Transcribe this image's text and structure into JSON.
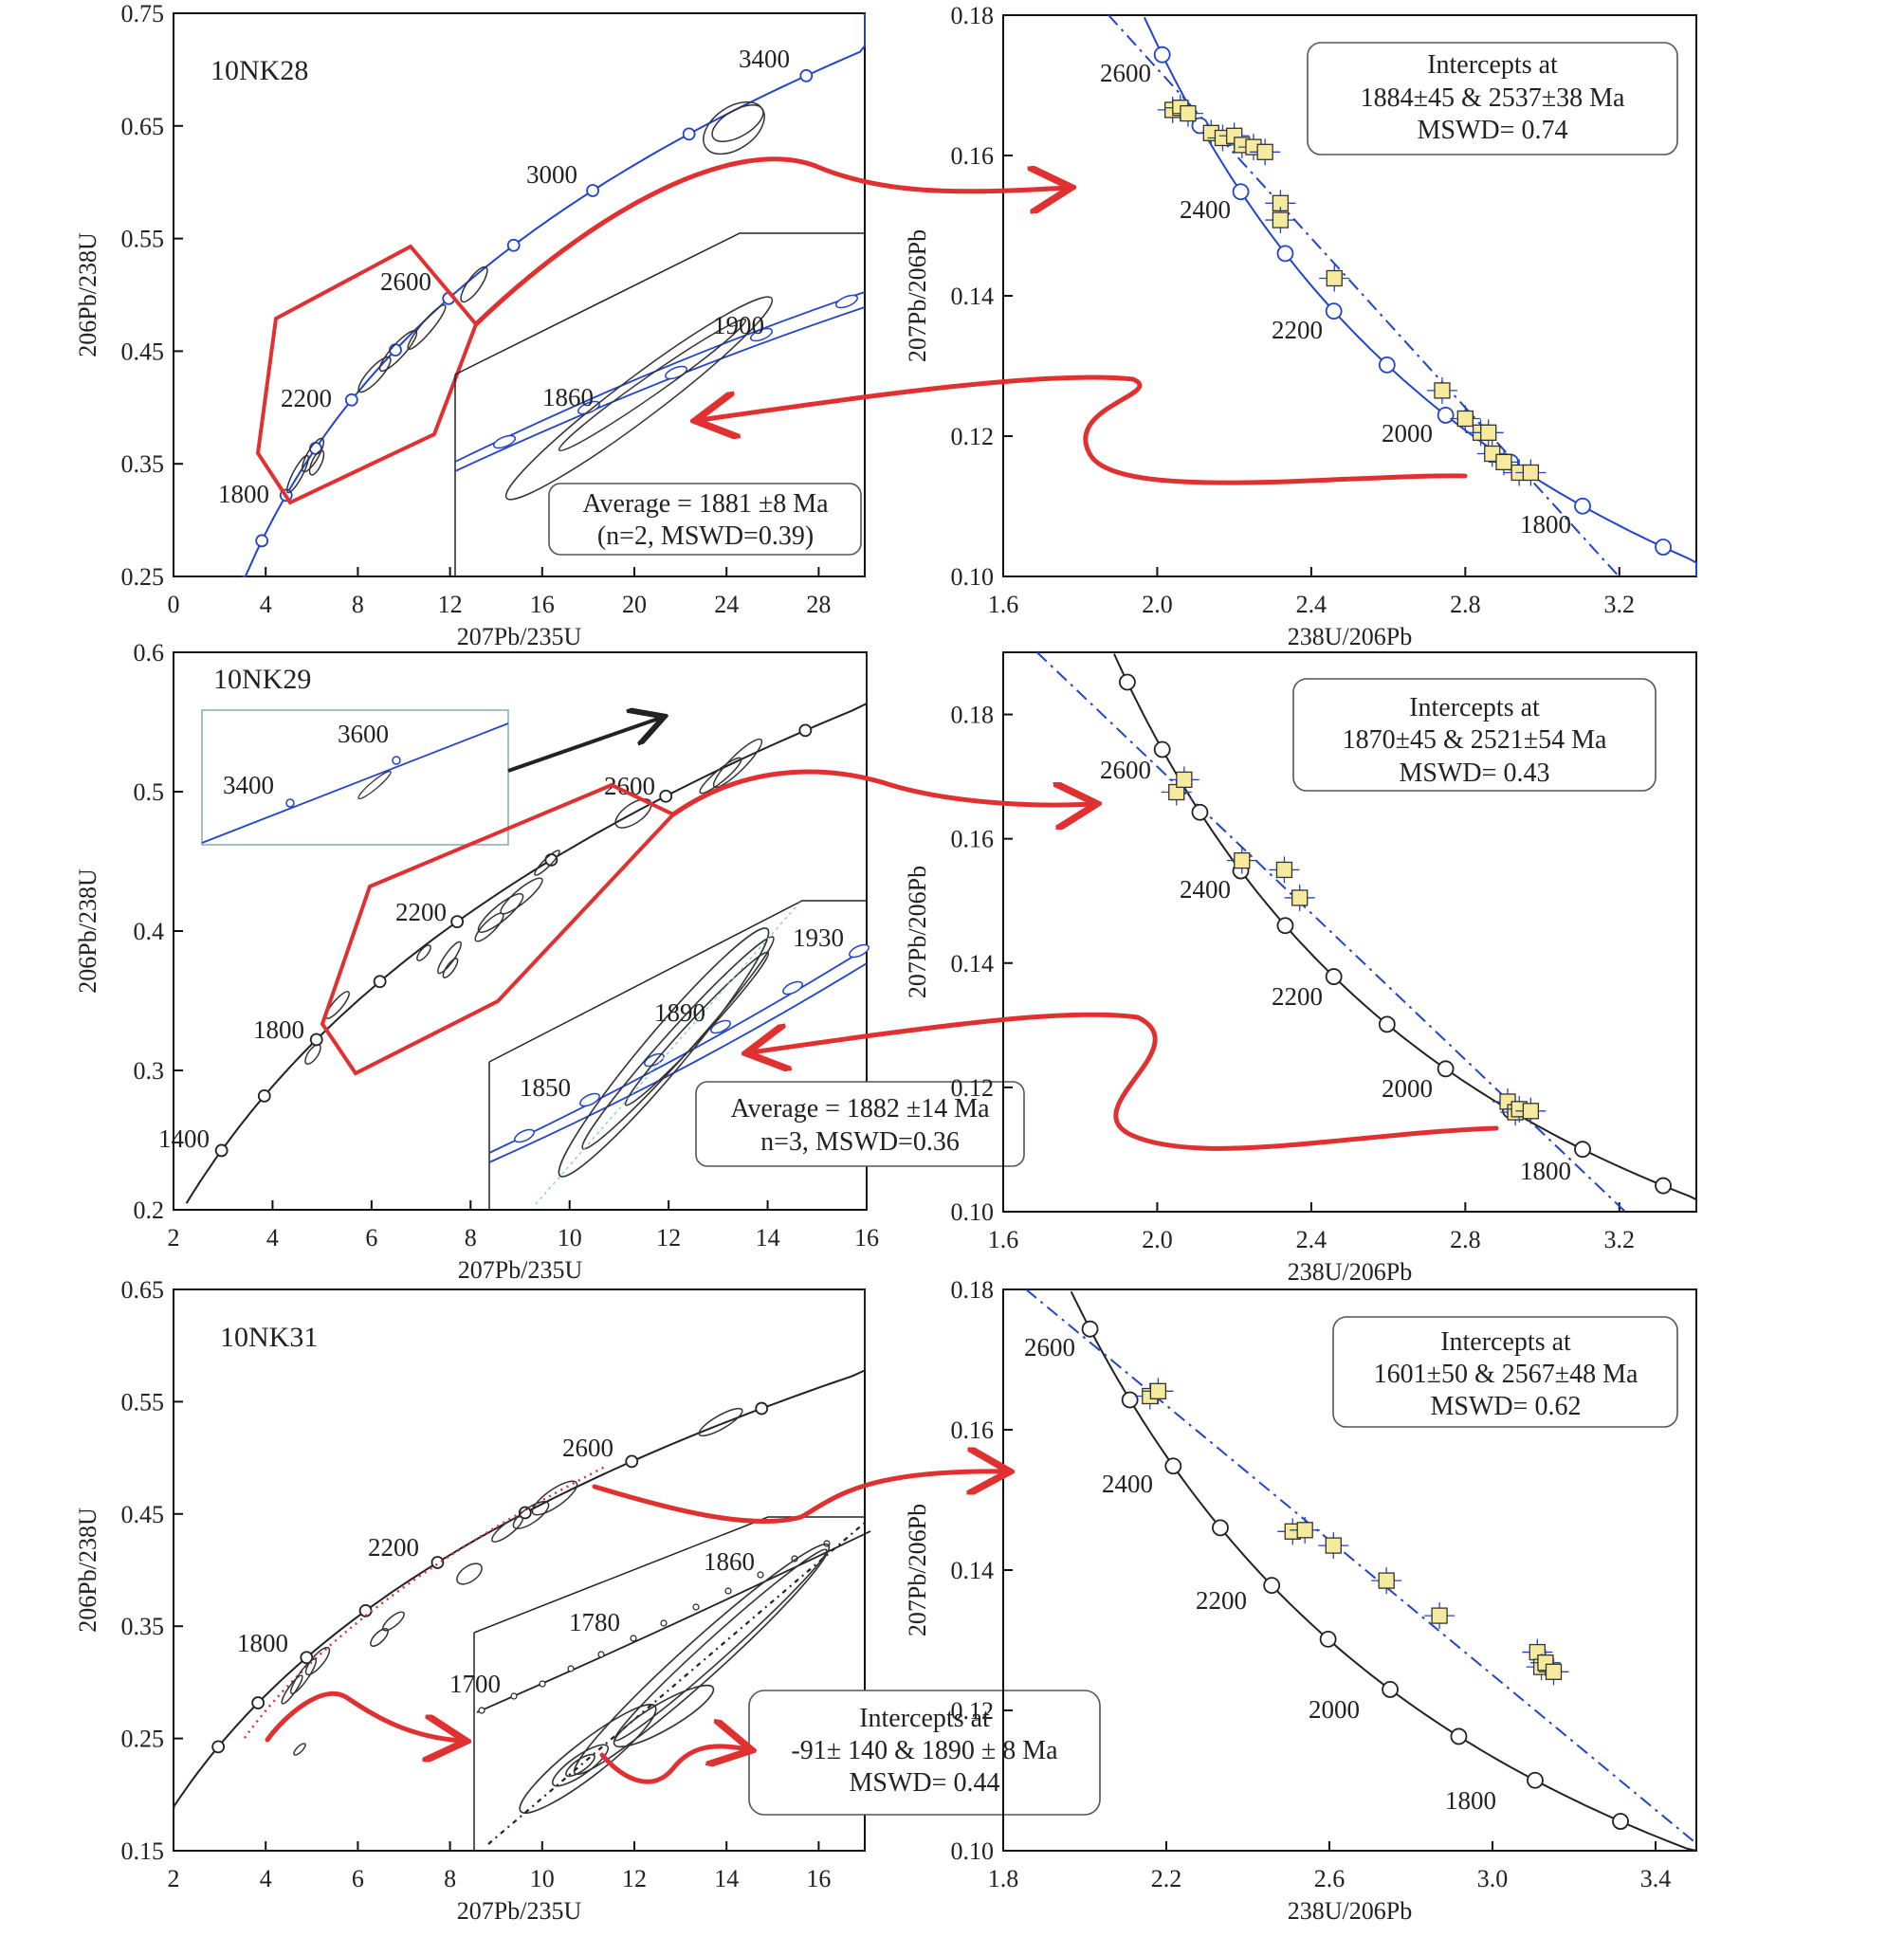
{
  "chart_data": [
    {
      "id": "p1",
      "type": "concordia",
      "sample_label": "10NK28",
      "xlabel": "207Pb/235U",
      "ylabel": "206Pb/238U",
      "xlim": [
        0,
        30
      ],
      "ylim": [
        0.25,
        0.75
      ],
      "xticks": [
        "0",
        "4",
        "8",
        "12",
        "16",
        "20",
        "24",
        "28"
      ],
      "yticks": [
        "0.25",
        "0.35",
        "0.45",
        "0.55",
        "0.65",
        "0.75"
      ],
      "curve_color": "#2244cc",
      "age_labels": [
        "1800",
        "2200",
        "2600",
        "3000",
        "3400"
      ],
      "age_values": [
        1800,
        2200,
        2600,
        3000,
        3400
      ],
      "inset_age_labels": [
        "1860",
        "1900"
      ],
      "inset_age_values": [
        1860,
        1900
      ],
      "box": {
        "line1": "Average = 1881 ±8 Ma",
        "line2": "(n=2, MSWD=0.39)"
      }
    },
    {
      "id": "p2",
      "type": "tera-wasserburg",
      "xlabel": "238U/206Pb",
      "ylabel": "207Pb/206Pb",
      "xlim": [
        1.6,
        3.4
      ],
      "ylim": [
        0.1,
        0.18
      ],
      "xticks": [
        "1.6",
        "2.0",
        "2.4",
        "2.8",
        "3.2"
      ],
      "yticks": [
        "0.10",
        "0.12",
        "0.14",
        "0.16",
        "0.18"
      ],
      "curve_color": "#2244cc",
      "age_labels": [
        "2600",
        "2400",
        "2200",
        "2000",
        "1800"
      ],
      "data_points": [
        [
          2.04,
          0.1665
        ],
        [
          2.06,
          0.1668
        ],
        [
          2.08,
          0.166
        ],
        [
          2.14,
          0.1632
        ],
        [
          2.17,
          0.1625
        ],
        [
          2.2,
          0.1628
        ],
        [
          2.22,
          0.1615
        ],
        [
          2.25,
          0.1612
        ],
        [
          2.28,
          0.1605
        ],
        [
          2.32,
          0.1532
        ],
        [
          2.32,
          0.1508
        ],
        [
          2.46,
          0.1425
        ],
        [
          2.74,
          0.1265
        ],
        [
          2.8,
          0.1225
        ],
        [
          2.84,
          0.1205
        ],
        [
          2.86,
          0.1205
        ],
        [
          2.87,
          0.1175
        ],
        [
          2.9,
          0.1163
        ],
        [
          2.94,
          0.1148
        ],
        [
          2.97,
          0.1148
        ]
      ],
      "intercepts": {
        "lower": 1884,
        "lower_err": 45,
        "upper": 2537,
        "upper_err": 38,
        "mswd": 0.74
      },
      "box": {
        "line1": "Intercepts at",
        "line2": "1884±45  & 2537±38  Ma",
        "line3": "MSWD= 0.74"
      }
    },
    {
      "id": "p3",
      "type": "concordia",
      "sample_label": "10NK29",
      "xlabel": "207Pb/235U",
      "ylabel": "206Pb/238U",
      "xlim": [
        2,
        16
      ],
      "ylim": [
        0.2,
        0.6
      ],
      "xticks": [
        "2",
        "4",
        "6",
        "8",
        "10",
        "12",
        "14",
        "16"
      ],
      "yticks": [
        "0.2",
        "0.3",
        "0.4",
        "0.5",
        "0.6"
      ],
      "curve_color": "#222222",
      "age_labels": [
        "1400",
        "1800",
        "2200",
        "2600"
      ],
      "inset_top_labels": [
        "3400",
        "3600"
      ],
      "inset_age_labels": [
        "1850",
        "1890",
        "1930"
      ],
      "box": {
        "line1": "Average = 1882 ±14 Ma",
        "line2": "n=3, MSWD=0.36"
      }
    },
    {
      "id": "p4",
      "type": "tera-wasserburg",
      "xlabel": "238U/206Pb",
      "ylabel": "207Pb/206Pb",
      "xlim": [
        1.6,
        3.4
      ],
      "ylim": [
        0.1,
        0.19
      ],
      "xticks": [
        "1.6",
        "2.0",
        "2.4",
        "2.8",
        "3.2"
      ],
      "yticks": [
        "0.10",
        "0.12",
        "0.14",
        "0.16",
        "0.18"
      ],
      "curve_color": "#222222",
      "age_labels": [
        "2600",
        "2400",
        "2200",
        "2000",
        "1800"
      ],
      "data_points": [
        [
          2.05,
          0.1675
        ],
        [
          2.07,
          0.1695
        ],
        [
          2.22,
          0.1565
        ],
        [
          2.33,
          0.155
        ],
        [
          2.37,
          0.1505
        ],
        [
          2.91,
          0.1177
        ],
        [
          2.93,
          0.116
        ],
        [
          2.94,
          0.1165
        ],
        [
          2.97,
          0.1162
        ]
      ],
      "intercepts": {
        "lower": 1870,
        "lower_err": 45,
        "upper": 2521,
        "upper_err": 54,
        "mswd": 0.43
      },
      "box": {
        "line1": "Intercepts at",
        "line2": "1870±45  & 2521±54  Ma",
        "line3": "MSWD= 0.43"
      }
    },
    {
      "id": "p5",
      "type": "concordia",
      "sample_label": "10NK31",
      "xlabel": "207Pb/235U",
      "ylabel": "206Pb/238U",
      "xlim": [
        2,
        17
      ],
      "ylim": [
        0.15,
        0.65
      ],
      "xticks": [
        "2",
        "4",
        "6",
        "8",
        "10",
        "12",
        "14",
        "16"
      ],
      "yticks": [
        "0.15",
        "0.25",
        "0.35",
        "0.45",
        "0.55",
        "0.65"
      ],
      "curve_color": "#222222",
      "age_labels": [
        "1800",
        "2200",
        "2600"
      ],
      "inset_age_labels": [
        "1700",
        "1780",
        "1860"
      ],
      "box": {
        "line1": "Intercepts at",
        "line2": "-91± 140 & 1890 ± 8 Ma",
        "line3": "MSWD= 0.44"
      }
    },
    {
      "id": "p6",
      "type": "tera-wasserburg",
      "xlabel": "238U/206Pb",
      "ylabel": "207Pb/206Pb",
      "xlim": [
        1.8,
        3.5
      ],
      "ylim": [
        0.1,
        0.18
      ],
      "xticks": [
        "1.8",
        "2.2",
        "2.6",
        "3.0",
        "3.4"
      ],
      "yticks": [
        "0.10",
        "0.12",
        "0.14",
        "0.16",
        "0.18"
      ],
      "curve_color": "#222222",
      "age_labels": [
        "2600",
        "2400",
        "2200",
        "2000",
        "1800"
      ],
      "data_points": [
        [
          2.16,
          0.1648
        ],
        [
          2.18,
          0.1655
        ],
        [
          2.51,
          0.1455
        ],
        [
          2.54,
          0.1457
        ],
        [
          2.61,
          0.1435
        ],
        [
          2.74,
          0.1385
        ],
        [
          2.87,
          0.1335
        ],
        [
          3.11,
          0.1283
        ],
        [
          3.12,
          0.1262
        ],
        [
          3.13,
          0.1268
        ],
        [
          3.15,
          0.1255
        ]
      ],
      "intercepts": {
        "lower": 1601,
        "lower_err": 50,
        "upper": 2567,
        "upper_err": 48,
        "mswd": 0.62
      },
      "box": {
        "line1": "Intercepts at",
        "line2": "1601±50 & 2567±48 Ma",
        "line3": "MSWD= 0.62"
      }
    }
  ]
}
